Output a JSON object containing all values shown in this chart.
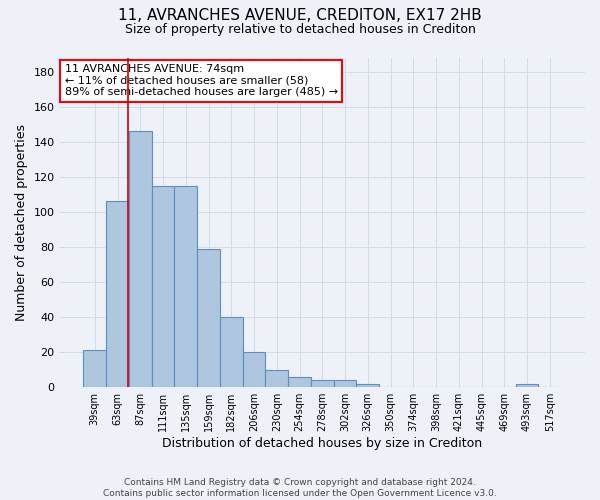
{
  "title1": "11, AVRANCHES AVENUE, CREDITON, EX17 2HB",
  "title2": "Size of property relative to detached houses in Crediton",
  "xlabel": "Distribution of detached houses by size in Crediton",
  "ylabel": "Number of detached properties",
  "footer1": "Contains HM Land Registry data © Crown copyright and database right 2024.",
  "footer2": "Contains public sector information licensed under the Open Government Licence v3.0.",
  "annotation_title": "11 AVRANCHES AVENUE: 74sqm",
  "annotation_line1": "← 11% of detached houses are smaller (58)",
  "annotation_line2": "89% of semi-detached houses are larger (485) →",
  "bar_labels": [
    "39sqm",
    "63sqm",
    "87sqm",
    "111sqm",
    "135sqm",
    "159sqm",
    "182sqm",
    "206sqm",
    "230sqm",
    "254sqm",
    "278sqm",
    "302sqm",
    "326sqm",
    "350sqm",
    "374sqm",
    "398sqm",
    "421sqm",
    "445sqm",
    "469sqm",
    "493sqm",
    "517sqm"
  ],
  "bar_values": [
    21,
    106,
    146,
    115,
    115,
    79,
    40,
    20,
    10,
    6,
    4,
    4,
    2,
    0,
    0,
    0,
    0,
    0,
    0,
    2,
    0
  ],
  "bar_color": "#aec6de",
  "bar_edge_color": "#5b8fc9",
  "grid_color": "#d0dce8",
  "bg_color": "#eef2f8",
  "vline_x": 1.46,
  "vline_color": "#cc0000",
  "ylim": [
    0,
    188
  ],
  "yticks": [
    0,
    20,
    40,
    60,
    80,
    100,
    120,
    140,
    160,
    180
  ],
  "title1_fontsize": 11,
  "title2_fontsize": 9,
  "xlabel_fontsize": 9,
  "ylabel_fontsize": 9,
  "tick_fontsize": 8,
  "xtick_fontsize": 7,
  "footer_fontsize": 6.5,
  "annot_fontsize": 8
}
